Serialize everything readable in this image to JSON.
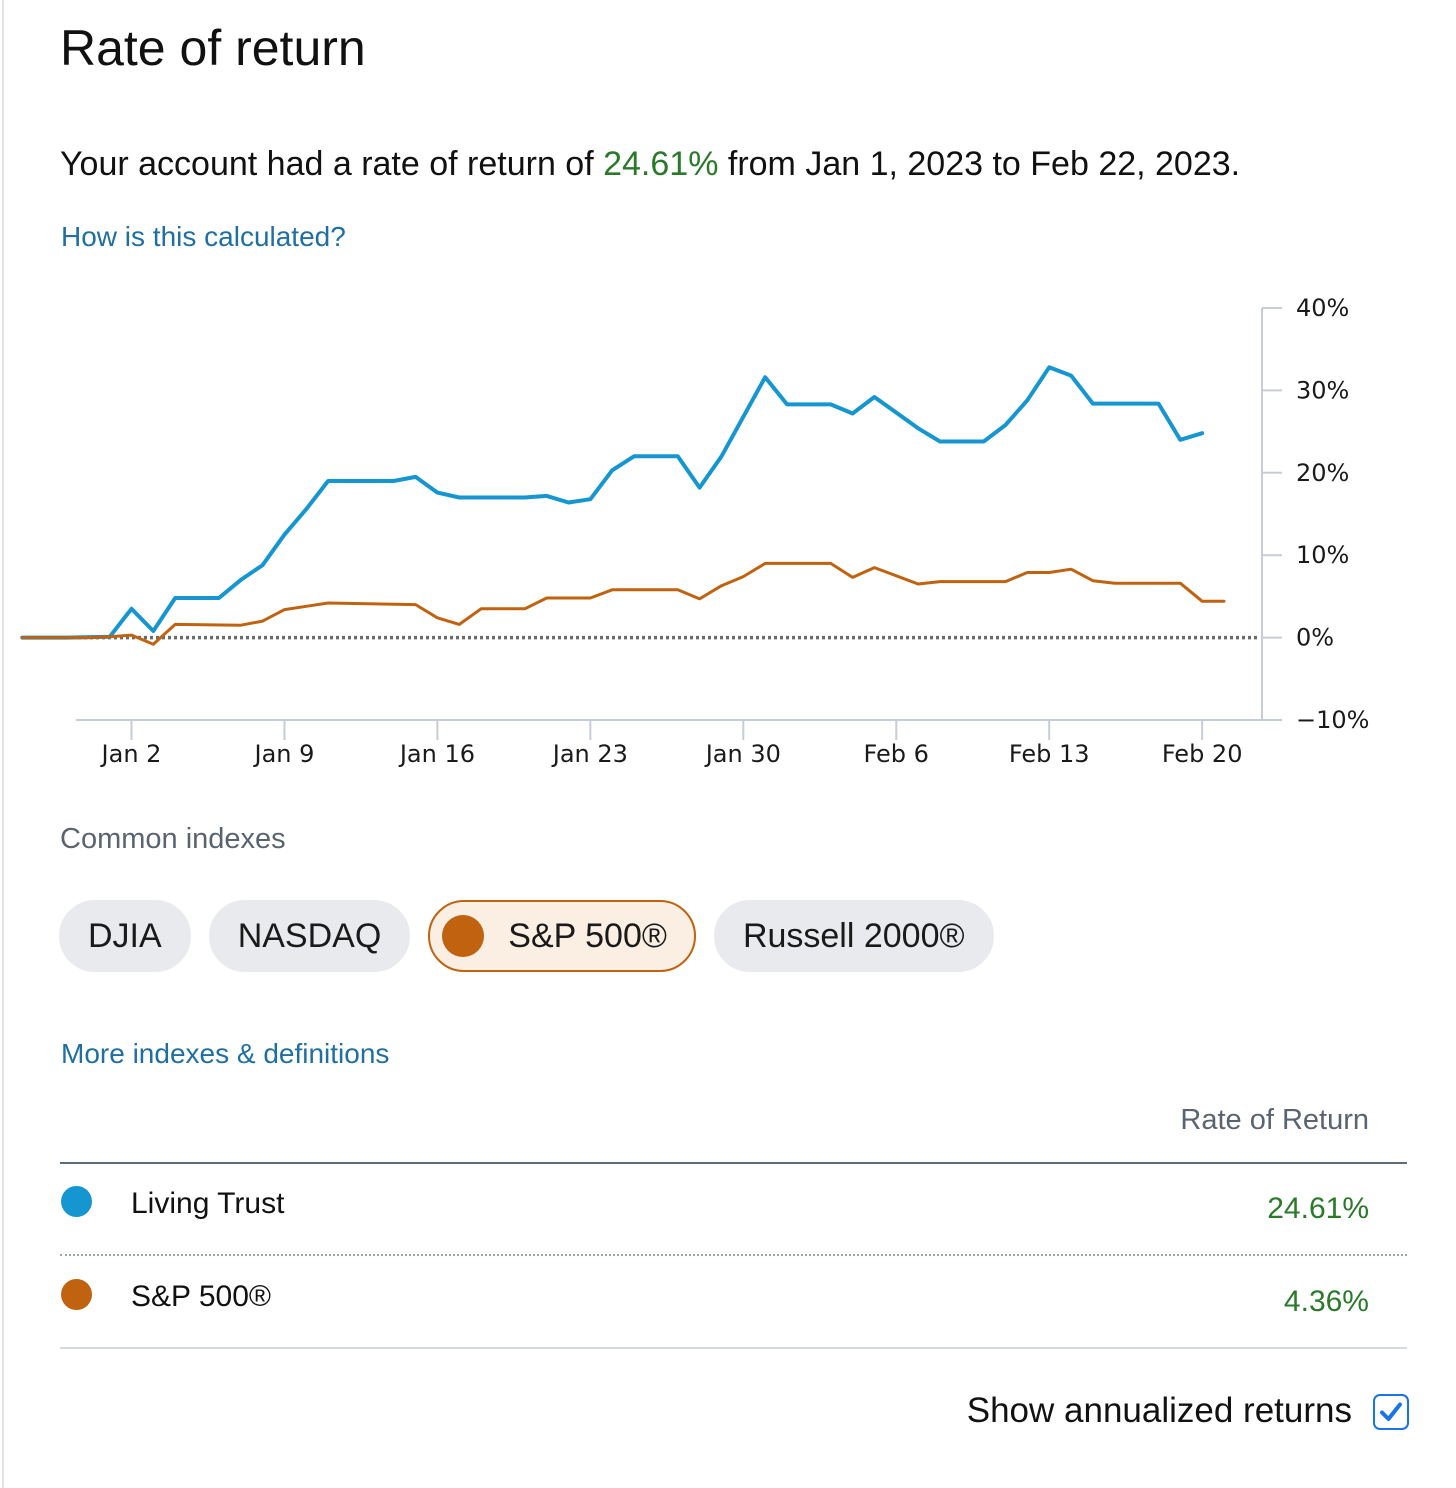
{
  "title": "Rate of return",
  "summary": {
    "prefix": "Your account had a rate of return of ",
    "return_value": "24.61%",
    "suffix": " from Jan 1, 2023 to Feb 22, 2023."
  },
  "links": {
    "how_calculated": "How is this calculated?",
    "more_indexes": "More indexes & definitions"
  },
  "colors": {
    "account_line": "#1596d1",
    "index_line": "#c0620f",
    "positive": "#2a7a2a",
    "link": "#1f6fa0"
  },
  "chart_data": {
    "type": "line",
    "title": "",
    "xlabel": "",
    "ylabel": "",
    "y_axis_side": "right",
    "ylim": [
      -10,
      40
    ],
    "yticks": [
      40,
      30,
      20,
      10,
      0,
      -10
    ],
    "ytick_labels": [
      "40%",
      "30%",
      "20%",
      "10%",
      "0%",
      "−10%"
    ],
    "x_dates": [
      "Dec 30",
      "Jan 2",
      "Jan 3",
      "Jan 4",
      "Jan 5",
      "Jan 6",
      "Jan 9",
      "Jan 10",
      "Jan 11",
      "Jan 12",
      "Jan 13",
      "Jan 17",
      "Jan 18",
      "Jan 19",
      "Jan 20",
      "Jan 23",
      "Jan 24",
      "Jan 25",
      "Jan 26",
      "Jan 27",
      "Jan 30",
      "Jan 31",
      "Feb 1",
      "Feb 2",
      "Feb 3",
      "Feb 6",
      "Feb 7",
      "Feb 8",
      "Feb 9",
      "Feb 10",
      "Feb 13",
      "Feb 14",
      "Feb 15",
      "Feb 16",
      "Feb 17",
      "Feb 21",
      "Feb 22"
    ],
    "xticks": [
      "Jan 2",
      "Jan 9",
      "Jan 16",
      "Jan 23",
      "Jan 30",
      "Feb 6",
      "Feb 13",
      "Feb 20"
    ],
    "zero_line": "dotted",
    "series": [
      {
        "name": "Living Trust",
        "color": "#1596d1",
        "points": [
          [
            "Dec 28",
            0
          ],
          [
            "Dec 30",
            0
          ],
          [
            "Jan 1",
            0.1
          ],
          [
            "Jan 2",
            3.5
          ],
          [
            "Jan 3",
            0.8
          ],
          [
            "Jan 4",
            4.8
          ],
          [
            "Jan 6",
            4.8
          ],
          [
            "Jan 7",
            7.0
          ],
          [
            "Jan 8",
            8.8
          ],
          [
            "Jan 9",
            12.5
          ],
          [
            "Jan 10",
            15.6
          ],
          [
            "Jan 11",
            19.0
          ],
          [
            "Jan 14",
            19.0
          ],
          [
            "Jan 15",
            19.5
          ],
          [
            "Jan 16",
            17.6
          ],
          [
            "Jan 17",
            17.0
          ],
          [
            "Jan 20",
            17.0
          ],
          [
            "Jan 21",
            17.2
          ],
          [
            "Jan 22",
            16.4
          ],
          [
            "Jan 23",
            16.8
          ],
          [
            "Jan 24",
            20.3
          ],
          [
            "Jan 25",
            22.0
          ],
          [
            "Jan 27",
            22.0
          ],
          [
            "Jan 28",
            18.2
          ],
          [
            "Jan 29",
            22.0
          ],
          [
            "Jan 30",
            26.8
          ],
          [
            "Jan 31",
            31.6
          ],
          [
            "Feb 1",
            28.3
          ],
          [
            "Feb 3",
            28.3
          ],
          [
            "Feb 4",
            27.2
          ],
          [
            "Feb 5",
            29.2
          ],
          [
            "Feb 6",
            27.3
          ],
          [
            "Feb 7",
            25.4
          ],
          [
            "Feb 8",
            23.8
          ],
          [
            "Feb 10",
            23.8
          ],
          [
            "Feb 11",
            25.8
          ],
          [
            "Feb 12",
            28.8
          ],
          [
            "Feb 13",
            32.8
          ],
          [
            "Feb 14",
            31.8
          ],
          [
            "Feb 15",
            28.4
          ],
          [
            "Feb 18",
            28.4
          ],
          [
            "Feb 19",
            24.0
          ],
          [
            "Feb 20",
            24.8
          ]
        ]
      },
      {
        "name": "S&P 500®",
        "color": "#c0620f",
        "points": [
          [
            "Dec 28",
            0
          ],
          [
            "Dec 31",
            0
          ],
          [
            "Jan 1",
            0.1
          ],
          [
            "Jan 2",
            0.3
          ],
          [
            "Jan 3",
            -0.8
          ],
          [
            "Jan 4",
            1.6
          ],
          [
            "Jan 7",
            1.5
          ],
          [
            "Jan 8",
            2.0
          ],
          [
            "Jan 9",
            3.4
          ],
          [
            "Jan 10",
            3.8
          ],
          [
            "Jan 11",
            4.2
          ],
          [
            "Jan 15",
            4.0
          ],
          [
            "Jan 16",
            2.4
          ],
          [
            "Jan 17",
            1.6
          ],
          [
            "Jan 18",
            3.5
          ],
          [
            "Jan 20",
            3.5
          ],
          [
            "Jan 21",
            4.8
          ],
          [
            "Jan 23",
            4.8
          ],
          [
            "Jan 24",
            5.8
          ],
          [
            "Jan 27",
            5.8
          ],
          [
            "Jan 28",
            4.7
          ],
          [
            "Jan 29",
            6.3
          ],
          [
            "Jan 30",
            7.4
          ],
          [
            "Jan 31",
            9.0
          ],
          [
            "Feb 3",
            9.0
          ],
          [
            "Feb 4",
            7.3
          ],
          [
            "Feb 5",
            8.5
          ],
          [
            "Feb 6",
            7.5
          ],
          [
            "Feb 7",
            6.5
          ],
          [
            "Feb 8",
            6.8
          ],
          [
            "Feb 11",
            6.8
          ],
          [
            "Feb 12",
            7.9
          ],
          [
            "Feb 13",
            7.9
          ],
          [
            "Feb 14",
            8.3
          ],
          [
            "Feb 15",
            6.9
          ],
          [
            "Feb 16",
            6.6
          ],
          [
            "Feb 19",
            6.6
          ],
          [
            "Feb 20",
            4.4
          ],
          [
            "Feb 21",
            4.4
          ]
        ]
      }
    ]
  },
  "indexes": {
    "label": "Common indexes",
    "items": [
      {
        "label": "DJIA",
        "active": false
      },
      {
        "label": "NASDAQ",
        "active": false
      },
      {
        "label": "S&P 500®",
        "active": true
      },
      {
        "label": "Russell 2000®",
        "active": false
      }
    ]
  },
  "table": {
    "header": "Rate of Return",
    "rows": [
      {
        "name": "Living Trust",
        "value": "24.61%",
        "color": "#1596d1"
      },
      {
        "name": "S&P 500®",
        "value": "4.36%",
        "color": "#c0620f"
      }
    ]
  },
  "annualized": {
    "label": "Show annualized returns",
    "checked": true
  }
}
